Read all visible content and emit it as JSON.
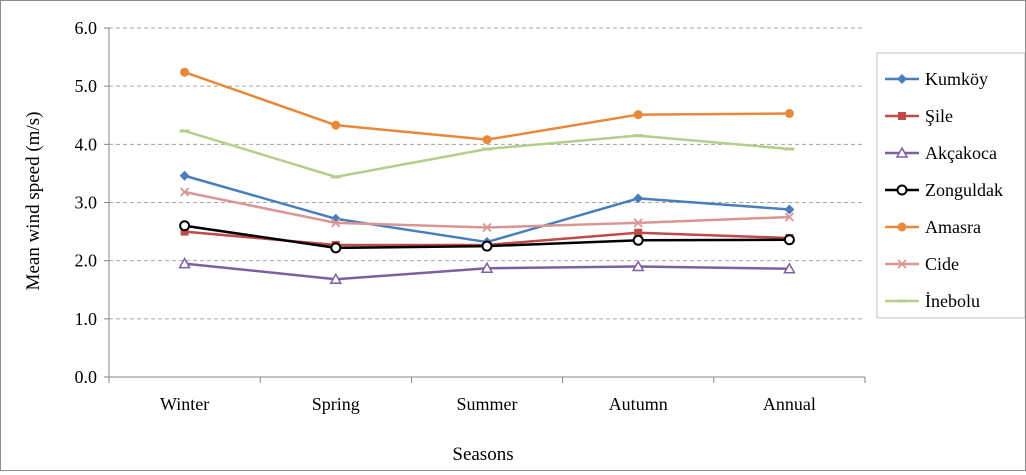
{
  "chart_data": {
    "type": "line",
    "title": "",
    "xlabel": "Seasons",
    "ylabel": "Mean  wind speed  (m/s)",
    "ylim": [
      0,
      6
    ],
    "yticks": [
      "0.0",
      "1.0",
      "2.0",
      "3.0",
      "4.0",
      "5.0",
      "6.0"
    ],
    "grid": "horizontal dashed",
    "legend_position": "right",
    "categories": [
      "Winter",
      "Spring",
      "Summer",
      "Autumn",
      "Annual"
    ],
    "series": [
      {
        "name": "Kumköy",
        "color": "#4a7ebb",
        "marker": "diamond",
        "values": [
          3.46,
          2.72,
          2.32,
          3.07,
          2.88
        ]
      },
      {
        "name": "Şile",
        "color": "#be4b48",
        "marker": "square",
        "values": [
          2.5,
          2.27,
          2.27,
          2.48,
          2.39
        ]
      },
      {
        "name": "Akçakoca",
        "color": "#7d60a0",
        "marker": "triangle",
        "values": [
          1.95,
          1.68,
          1.87,
          1.9,
          1.86
        ]
      },
      {
        "name": "Zonguldak",
        "color": "#000000",
        "marker": "circle-open",
        "values": [
          2.6,
          2.22,
          2.25,
          2.35,
          2.36
        ]
      },
      {
        "name": "Amasra",
        "color": "#e7893b",
        "marker": "circle",
        "values": [
          5.24,
          4.33,
          4.08,
          4.51,
          4.53
        ]
      },
      {
        "name": "Cide",
        "color": "#d99694",
        "marker": "x",
        "values": [
          3.18,
          2.65,
          2.57,
          2.65,
          2.75
        ]
      },
      {
        "name": "İnebolu",
        "color": "#b3cf8a",
        "marker": "dash",
        "values": [
          4.23,
          3.44,
          3.92,
          4.15,
          3.92
        ]
      }
    ]
  }
}
